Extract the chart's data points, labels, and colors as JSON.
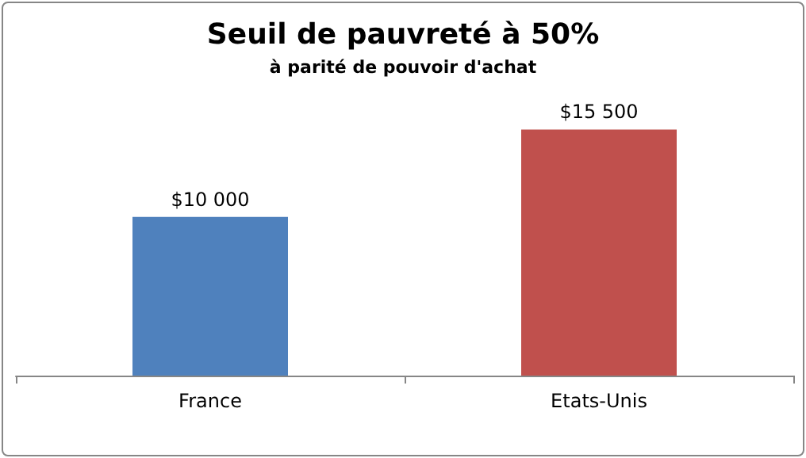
{
  "chart_data": {
    "type": "bar",
    "title": "Seuil de pauvreté à 50%",
    "subtitle": "à parité de pouvoir d'achat",
    "categories": [
      "France",
      "Etats-Unis"
    ],
    "values": [
      10000,
      15500
    ],
    "colors": [
      "#4f81bd",
      "#c0504d"
    ],
    "value_labels": [
      "$10 000",
      "$15 500"
    ],
    "grid": false
  }
}
